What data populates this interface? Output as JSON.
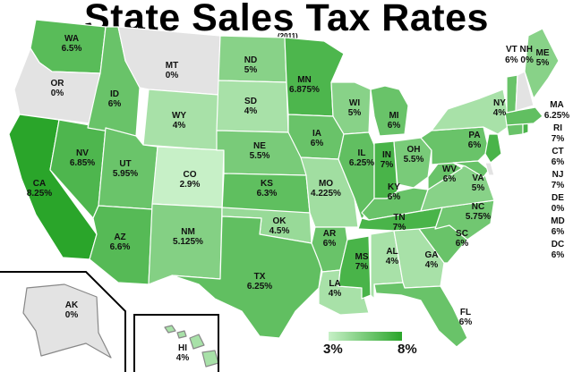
{
  "title": "State Sales Tax Rates",
  "year": "(2011)",
  "legend": {
    "min_label": "3%",
    "max_label": "8%",
    "min_color": "#c7f0c7",
    "max_color": "#2aa52a"
  },
  "states": [
    {
      "id": "WA",
      "abbr": "WA",
      "rate": "6.5%",
      "value": 6.5
    },
    {
      "id": "OR",
      "abbr": "OR",
      "rate": "0%",
      "value": 0
    },
    {
      "id": "CA",
      "abbr": "CA",
      "rate": "8.25%",
      "value": 8.25
    },
    {
      "id": "NV",
      "abbr": "NV",
      "rate": "6.85%",
      "value": 6.85
    },
    {
      "id": "ID",
      "abbr": "ID",
      "rate": "6%",
      "value": 6
    },
    {
      "id": "MT",
      "abbr": "MT",
      "rate": "0%",
      "value": 0
    },
    {
      "id": "WY",
      "abbr": "WY",
      "rate": "4%",
      "value": 4
    },
    {
      "id": "UT",
      "abbr": "UT",
      "rate": "5.95%",
      "value": 5.95
    },
    {
      "id": "AZ",
      "abbr": "AZ",
      "rate": "6.6%",
      "value": 6.6
    },
    {
      "id": "CO",
      "abbr": "CO",
      "rate": "2.9%",
      "value": 2.9
    },
    {
      "id": "NM",
      "abbr": "NM",
      "rate": "5.125%",
      "value": 5.125
    },
    {
      "id": "ND",
      "abbr": "ND",
      "rate": "5%",
      "value": 5
    },
    {
      "id": "SD",
      "abbr": "SD",
      "rate": "4%",
      "value": 4
    },
    {
      "id": "NE",
      "abbr": "NE",
      "rate": "5.5%",
      "value": 5.5
    },
    {
      "id": "KS",
      "abbr": "KS",
      "rate": "6.3%",
      "value": 6.3
    },
    {
      "id": "OK",
      "abbr": "OK",
      "rate": "4.5%",
      "value": 4.5
    },
    {
      "id": "TX",
      "abbr": "TX",
      "rate": "6.25%",
      "value": 6.25
    },
    {
      "id": "MN",
      "abbr": "MN",
      "rate": "6.875%",
      "value": 6.875
    },
    {
      "id": "IA",
      "abbr": "IA",
      "rate": "6%",
      "value": 6
    },
    {
      "id": "MO",
      "abbr": "MO",
      "rate": "4.225%",
      "value": 4.225
    },
    {
      "id": "AR",
      "abbr": "AR",
      "rate": "6%",
      "value": 6
    },
    {
      "id": "LA",
      "abbr": "LA",
      "rate": "4%",
      "value": 4
    },
    {
      "id": "WI",
      "abbr": "WI",
      "rate": "5%",
      "value": 5
    },
    {
      "id": "IL",
      "abbr": "IL",
      "rate": "6.25%",
      "value": 6.25
    },
    {
      "id": "MI",
      "abbr": "MI",
      "rate": "6%",
      "value": 6
    },
    {
      "id": "IN",
      "abbr": "IN",
      "rate": "7%",
      "value": 7
    },
    {
      "id": "OH",
      "abbr": "OH",
      "rate": "5.5%",
      "value": 5.5
    },
    {
      "id": "KY",
      "abbr": "KY",
      "rate": "6%",
      "value": 6
    },
    {
      "id": "TN",
      "abbr": "TN",
      "rate": "7%",
      "value": 7
    },
    {
      "id": "MS",
      "abbr": "MS",
      "rate": "7%",
      "value": 7
    },
    {
      "id": "AL",
      "abbr": "AL",
      "rate": "4%",
      "value": 4
    },
    {
      "id": "GA",
      "abbr": "GA",
      "rate": "4%",
      "value": 4
    },
    {
      "id": "FL",
      "abbr": "FL",
      "rate": "6%",
      "value": 6
    },
    {
      "id": "SC",
      "abbr": "SC",
      "rate": "6%",
      "value": 6
    },
    {
      "id": "NC",
      "abbr": "NC",
      "rate": "5.75%",
      "value": 5.75
    },
    {
      "id": "VA",
      "abbr": "VA",
      "rate": "5%",
      "value": 5
    },
    {
      "id": "WV",
      "abbr": "WV",
      "rate": "6%",
      "value": 6
    },
    {
      "id": "PA",
      "abbr": "PA",
      "rate": "6%",
      "value": 6
    },
    {
      "id": "NY",
      "abbr": "NY",
      "rate": "4%",
      "value": 4
    },
    {
      "id": "ME",
      "abbr": "ME",
      "rate": "5%",
      "value": 5
    },
    {
      "id": "AK",
      "abbr": "AK",
      "rate": "0%",
      "value": 0
    },
    {
      "id": "HI",
      "abbr": "HI",
      "rate": "4%",
      "value": 4
    }
  ],
  "east_labels": {
    "vt_nh": {
      "abbr": "VT NH",
      "rates": "6% 0%"
    },
    "ma": {
      "abbr": "MA",
      "rate": "6.25%"
    },
    "ri": {
      "abbr": "RI",
      "rate": "7%"
    },
    "ct": {
      "abbr": "CT",
      "rate": "6%"
    },
    "nj": {
      "abbr": "NJ",
      "rate": "7%"
    },
    "de": {
      "abbr": "DE",
      "rate": "0%"
    },
    "md": {
      "abbr": "MD",
      "rate": "6%"
    },
    "dc": {
      "abbr": "DC",
      "rate": "6%"
    }
  }
}
